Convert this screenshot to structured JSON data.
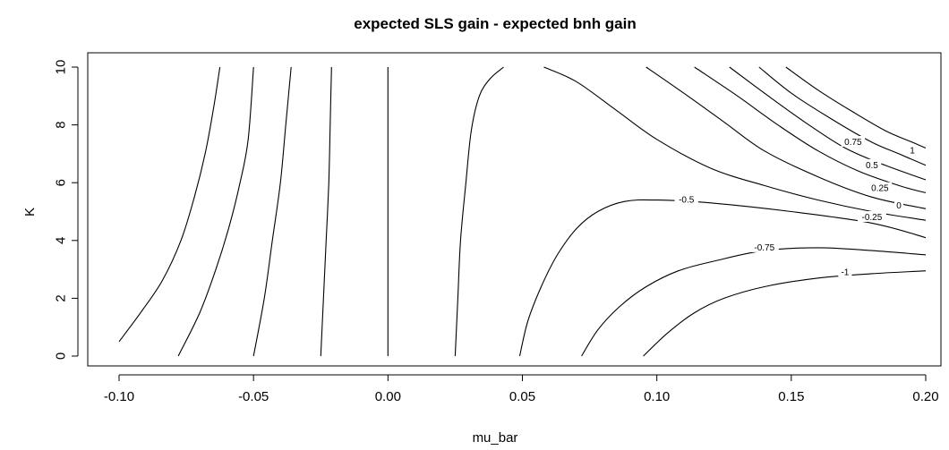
{
  "chart_data": {
    "type": "contour",
    "title": "expected SLS gain - expected bnh gain",
    "xlabel": "mu_bar",
    "ylabel": "K",
    "xlim": [
      -0.1,
      0.2
    ],
    "ylim": [
      0,
      10
    ],
    "x_ticks": [
      -0.1,
      -0.05,
      0.0,
      0.05,
      0.1,
      0.15,
      0.2
    ],
    "x_tick_labels": [
      "-0.10",
      "-0.05",
      "0.00",
      "0.05",
      "0.10",
      "0.15",
      "0.20"
    ],
    "y_ticks": [
      0,
      2,
      4,
      6,
      8,
      10
    ],
    "y_tick_labels": [
      "0",
      "2",
      "4",
      "6",
      "8",
      "10"
    ],
    "grid": false,
    "contours": [
      {
        "id": "c1",
        "points": [
          [
            -0.1,
            0.5
          ],
          [
            -0.092,
            1.5
          ],
          [
            -0.084,
            2.6
          ],
          [
            -0.077,
            4.0
          ],
          [
            -0.072,
            5.5
          ],
          [
            -0.068,
            7.0
          ],
          [
            -0.065,
            8.5
          ],
          [
            -0.0625,
            10
          ]
        ]
      },
      {
        "id": "c2",
        "points": [
          [
            -0.078,
            0
          ],
          [
            -0.07,
            1.5
          ],
          [
            -0.064,
            3.0
          ],
          [
            -0.059,
            4.5
          ],
          [
            -0.055,
            6.0
          ],
          [
            -0.052,
            7.5
          ],
          [
            -0.05,
            10
          ]
        ]
      },
      {
        "id": "c3",
        "points": [
          [
            -0.05,
            0
          ],
          [
            -0.046,
            2
          ],
          [
            -0.043,
            4
          ],
          [
            -0.04,
            6
          ],
          [
            -0.038,
            8
          ],
          [
            -0.036,
            10
          ]
        ]
      },
      {
        "id": "c4",
        "points": [
          [
            -0.025,
            0
          ],
          [
            -0.024,
            2
          ],
          [
            -0.023,
            4
          ],
          [
            -0.022,
            6
          ],
          [
            -0.0215,
            8
          ],
          [
            -0.021,
            10
          ]
        ]
      },
      {
        "id": "c5",
        "points": [
          [
            0.0,
            0
          ],
          [
            0.0,
            10
          ]
        ]
      },
      {
        "id": "c6",
        "points": [
          [
            0.025,
            0
          ],
          [
            0.026,
            2
          ],
          [
            0.027,
            4
          ],
          [
            0.029,
            6
          ],
          [
            0.031,
            7.8
          ],
          [
            0.034,
            9
          ],
          [
            0.038,
            9.6
          ],
          [
            0.043,
            10
          ]
        ]
      },
      {
        "id": "c7",
        "points": [
          [
            0.049,
            0
          ],
          [
            0.052,
            1.2
          ],
          [
            0.057,
            2.4
          ],
          [
            0.063,
            3.5
          ],
          [
            0.07,
            4.4
          ],
          [
            0.078,
            5.0
          ],
          [
            0.088,
            5.35
          ],
          [
            0.1,
            5.4
          ],
          [
            0.12,
            5.3
          ],
          [
            0.15,
            5.0
          ],
          [
            0.18,
            4.6
          ],
          [
            0.2,
            4.1
          ]
        ]
      },
      {
        "id": "c8",
        "points": [
          [
            0.072,
            0
          ],
          [
            0.078,
            0.9
          ],
          [
            0.086,
            1.7
          ],
          [
            0.096,
            2.4
          ],
          [
            0.108,
            2.95
          ],
          [
            0.122,
            3.3
          ],
          [
            0.14,
            3.65
          ],
          [
            0.16,
            3.75
          ],
          [
            0.18,
            3.65
          ],
          [
            0.2,
            3.5
          ]
        ]
      },
      {
        "id": "c9",
        "points": [
          [
            0.095,
            0
          ],
          [
            0.104,
            0.8
          ],
          [
            0.114,
            1.5
          ],
          [
            0.125,
            2.0
          ],
          [
            0.14,
            2.4
          ],
          [
            0.16,
            2.7
          ],
          [
            0.18,
            2.85
          ],
          [
            0.2,
            2.95
          ]
        ]
      },
      {
        "id": "c10",
        "points": [
          [
            0.058,
            10
          ],
          [
            0.07,
            9.5
          ],
          [
            0.085,
            8.5
          ],
          [
            0.1,
            7.5
          ],
          [
            0.12,
            6.5
          ],
          [
            0.14,
            5.9
          ],
          [
            0.16,
            5.4
          ],
          [
            0.18,
            5.0
          ],
          [
            0.2,
            4.7
          ]
        ]
      },
      {
        "id": "c11",
        "points": [
          [
            0.096,
            10
          ],
          [
            0.11,
            9.1
          ],
          [
            0.125,
            8.1
          ],
          [
            0.14,
            7.1
          ],
          [
            0.16,
            6.2
          ],
          [
            0.18,
            5.5
          ],
          [
            0.2,
            5.1
          ]
        ]
      },
      {
        "id": "c12",
        "points": [
          [
            0.114,
            10
          ],
          [
            0.13,
            9.0
          ],
          [
            0.145,
            8.0
          ],
          [
            0.16,
            7.1
          ],
          [
            0.175,
            6.4
          ],
          [
            0.19,
            5.9
          ],
          [
            0.2,
            5.65
          ]
        ]
      },
      {
        "id": "c13",
        "points": [
          [
            0.127,
            10
          ],
          [
            0.14,
            9.1
          ],
          [
            0.155,
            8.1
          ],
          [
            0.17,
            7.2
          ],
          [
            0.185,
            6.6
          ],
          [
            0.2,
            6.1
          ]
        ]
      },
      {
        "id": "c14",
        "points": [
          [
            0.138,
            10
          ],
          [
            0.15,
            9.1
          ],
          [
            0.165,
            8.2
          ],
          [
            0.18,
            7.4
          ],
          [
            0.19,
            7.0
          ],
          [
            0.2,
            6.6
          ]
        ]
      },
      {
        "id": "c15",
        "points": [
          [
            0.148,
            10
          ],
          [
            0.16,
            9.2
          ],
          [
            0.172,
            8.5
          ],
          [
            0.185,
            7.8
          ],
          [
            0.195,
            7.4
          ],
          [
            0.2,
            7.2
          ]
        ]
      }
    ],
    "contour_labels": [
      {
        "text": "1",
        "x": 0.195,
        "y": 7.1
      },
      {
        "text": "0.75",
        "x": 0.173,
        "y": 7.4
      },
      {
        "text": "0.5",
        "x": 0.18,
        "y": 6.6
      },
      {
        "text": "0.25",
        "x": 0.183,
        "y": 5.8
      },
      {
        "text": "0",
        "x": 0.19,
        "y": 5.2
      },
      {
        "text": "-0.25",
        "x": 0.18,
        "y": 4.8
      },
      {
        "text": "-0.5",
        "x": 0.111,
        "y": 5.4
      },
      {
        "text": "-0.75",
        "x": 0.14,
        "y": 3.75
      },
      {
        "text": "-1",
        "x": 0.17,
        "y": 2.9
      }
    ]
  }
}
